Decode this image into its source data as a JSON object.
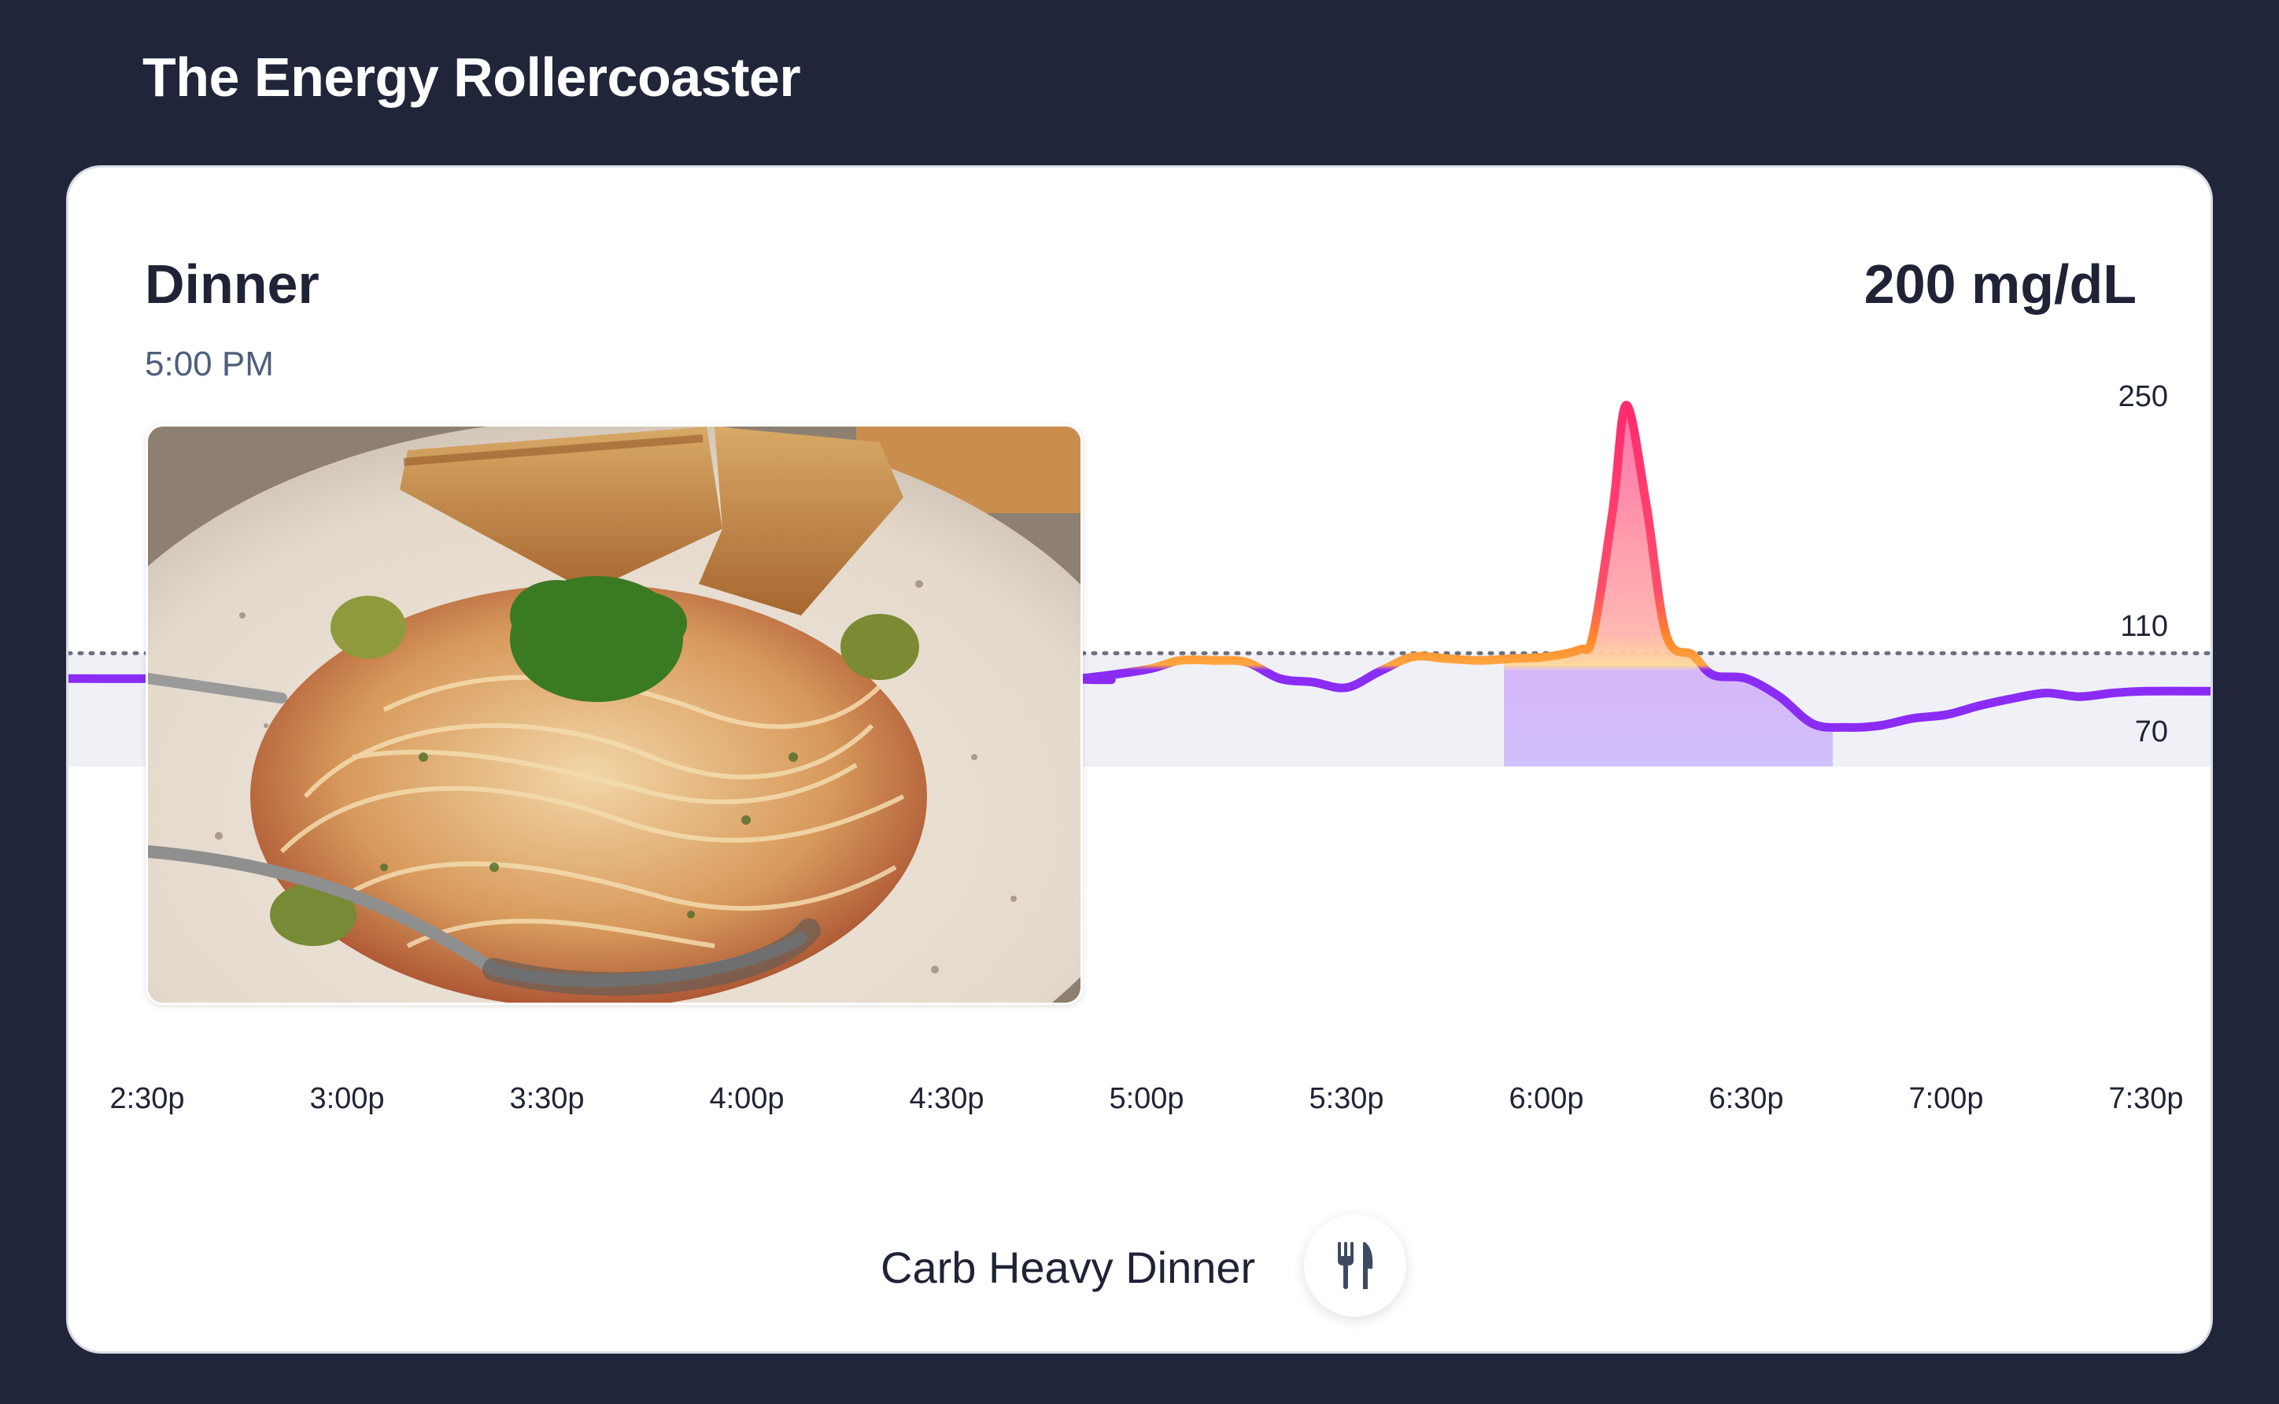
{
  "header": {
    "title": "The Energy Rollercoaster"
  },
  "meal": {
    "title": "Dinner",
    "time": "5:00 PM",
    "glucose": "200 mg/dL",
    "photo_icon": "spaghetti-plate-photo"
  },
  "footer": {
    "label": "Carb Heavy Dinner",
    "icon": "utensils-icon"
  },
  "colors": {
    "background": "#212539",
    "line_low": "#8b2cf5",
    "line_spike_top": "#ff2d6f",
    "line_spike_mid": "#ff8a2a",
    "target_band": "#eff1f7"
  },
  "chart_data": {
    "type": "line",
    "x_ticks": [
      "2:30p",
      "3:00p",
      "3:30p",
      "4:00p",
      "4:30p",
      "5:00p",
      "5:30p",
      "6:00p",
      "6:30p",
      "7:00p",
      "7:30p"
    ],
    "y_ticks": [
      250,
      110,
      70
    ],
    "reference_line": 110,
    "target_range": [
      70,
      110
    ],
    "series": [
      {
        "x": [
          "2:30p",
          "2:35p",
          "2:40p",
          "2:45p",
          "2:50p",
          "4:45p",
          "4:50p",
          "5:00p",
          "5:05p",
          "5:10p",
          "5:15p",
          "5:20p",
          "5:25p",
          "5:30p",
          "5:35p",
          "5:40p",
          "5:45p",
          "5:50p",
          "5:55p",
          "6:00p",
          "6:05p",
          "6:07p",
          "6:10p",
          "6:12p",
          "6:15p",
          "6:18p",
          "6:22p",
          "6:25p",
          "6:30p",
          "6:35p",
          "6:40p",
          "6:45p",
          "6:50p",
          "6:55p",
          "7:00p",
          "7:05p",
          "7:10p",
          "7:15p",
          "7:20p",
          "7:25p",
          "7:30p"
        ],
        "y": [
          96,
          97,
          97,
          99,
          102,
          96,
          96,
          101,
          106,
          106,
          105,
          96,
          94,
          91,
          100,
          108,
          107,
          106,
          107,
          108,
          112,
          120,
          190,
          247,
          192,
          120,
          109,
          98,
          96,
          86,
          71,
          69,
          70,
          74,
          76,
          81,
          85,
          88,
          86,
          88,
          89
        ]
      }
    ]
  }
}
